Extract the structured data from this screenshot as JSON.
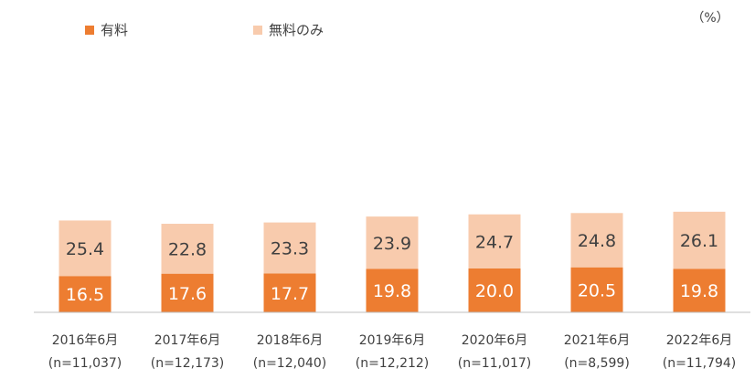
{
  "chart_data": {
    "type": "bar",
    "stacked": true,
    "unit": "（%）",
    "legend_position": "top-left",
    "categories": [
      {
        "date": "2016年6月",
        "n": "(n=11,037)"
      },
      {
        "date": "2017年6月",
        "n": "(n=12,173)"
      },
      {
        "date": "2018年6月",
        "n": "(n=12,040)"
      },
      {
        "date": "2019年6月",
        "n": "(n=12,212)"
      },
      {
        "date": "2020年6月",
        "n": "(n=11,017)"
      },
      {
        "date": "2021年6月",
        "n": "(n=8,599)"
      },
      {
        "date": "2022年6月",
        "n": "(n=11,794)"
      }
    ],
    "series": [
      {
        "name": "有料",
        "color": "#ED7D31",
        "values": [
          16.5,
          17.6,
          17.7,
          19.8,
          20.0,
          20.5,
          19.8
        ],
        "labels": [
          "16.5",
          "17.6",
          "17.7",
          "19.8",
          "20.0",
          "20.5",
          "19.8"
        ]
      },
      {
        "name": "無料のみ",
        "color": "#F8CBAD",
        "values": [
          25.4,
          22.8,
          23.3,
          23.9,
          24.7,
          24.8,
          26.1
        ],
        "labels": [
          "25.4",
          "22.8",
          "23.3",
          "23.9",
          "24.7",
          "24.8",
          "26.1"
        ]
      }
    ],
    "ylim": [
      0,
      46.5
    ],
    "grid": false,
    "axis_color": "#BFBFBF"
  }
}
